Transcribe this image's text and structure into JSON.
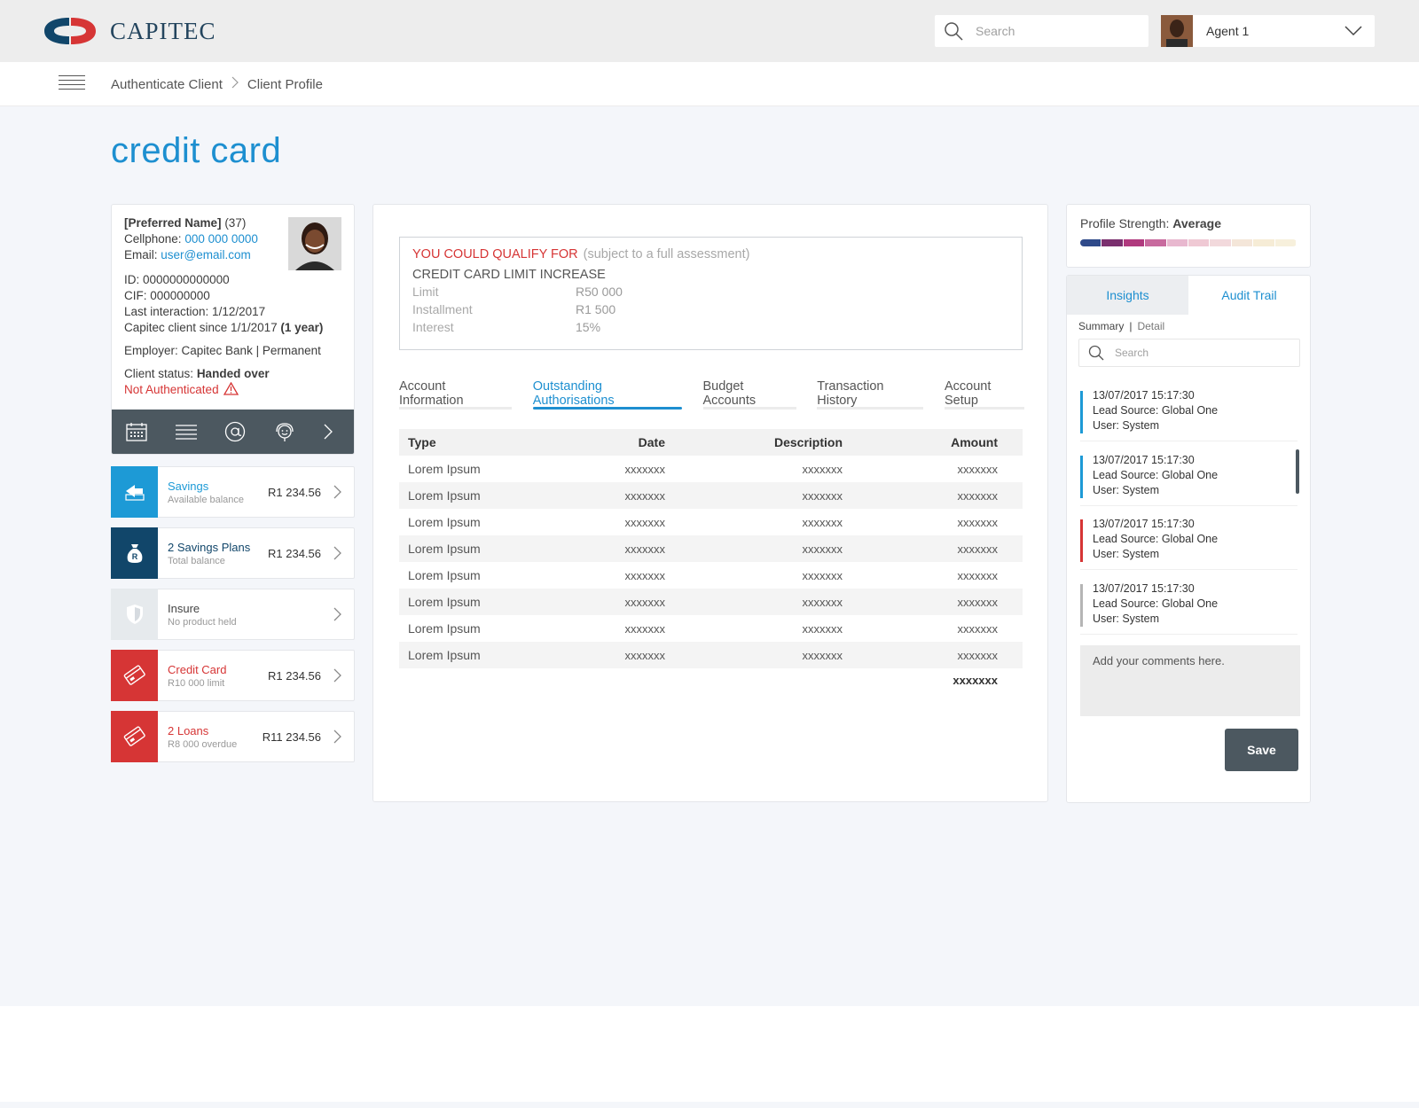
{
  "brand": {
    "name": "CAPITEC"
  },
  "header": {
    "search_placeholder": "Search",
    "agent_name": "Agent 1"
  },
  "breadcrumb": {
    "items": [
      "Authenticate Client",
      "Client Profile"
    ],
    "separator": ">"
  },
  "page": {
    "title": "credit card"
  },
  "client": {
    "preferred_name": "[Preferred Name]",
    "age": "(37)",
    "cellphone_label": "Cellphone:",
    "cellphone": "000 000 0000",
    "email_label": "Email:",
    "email": "user@email.com",
    "id_line": "ID: 0000000000000",
    "cif_line": "CIF: 000000000",
    "last_interaction": "Last interaction: 1/12/2017",
    "client_since": "Capitec client since 1/1/2017",
    "client_years": "(1 year)",
    "employer": "Employer: Capitec Bank | Permanent",
    "status_label": "Client status:",
    "status_value": "Handed over",
    "auth_status": "Not Authenticated"
  },
  "products": [
    {
      "name": "Savings",
      "sub": "Available balance",
      "value": "R1 234.56",
      "color": "#1d9ad6"
    },
    {
      "name": "2 Savings Plans",
      "sub": "Total balance",
      "value": "R1 234.56",
      "color": "#11466a"
    },
    {
      "name": "Insure",
      "sub": "No product held",
      "value": "",
      "color": "#e6eaed"
    },
    {
      "name": "Credit Card",
      "sub": "R10 000 limit",
      "value": "R1 234.56",
      "color": "#d63535"
    },
    {
      "name": "2 Loans",
      "sub": "R8 000 overdue",
      "value": "R11 234.56",
      "color": "#d63535"
    }
  ],
  "qualify": {
    "heading": "YOU COULD QUALIFY FOR",
    "note": "(subject to a full assessment)",
    "title": "CREDIT CARD LIMIT INCREASE",
    "rows": [
      {
        "label": "Limit",
        "value": "R50 000"
      },
      {
        "label": "Installment",
        "value": "R1 500"
      },
      {
        "label": "Interest",
        "value": "15%"
      }
    ]
  },
  "tabs": [
    {
      "label": "Account Information",
      "active": false
    },
    {
      "label": "Outstanding Authorisations",
      "active": true
    },
    {
      "label": "Budget Accounts",
      "active": false
    },
    {
      "label": "Transaction History",
      "active": false
    },
    {
      "label": "Account Setup",
      "active": false
    }
  ],
  "table": {
    "headers": [
      "Type",
      "Date",
      "Description",
      "Amount"
    ],
    "rows": [
      [
        "Lorem Ipsum",
        "xxxxxxx",
        "xxxxxxx",
        "xxxxxxx"
      ],
      [
        "Lorem Ipsum",
        "xxxxxxx",
        "xxxxxxx",
        "xxxxxxx"
      ],
      [
        "Lorem Ipsum",
        "xxxxxxx",
        "xxxxxxx",
        "xxxxxxx"
      ],
      [
        "Lorem Ipsum",
        "xxxxxxx",
        "xxxxxxx",
        "xxxxxxx"
      ],
      [
        "Lorem Ipsum",
        "xxxxxxx",
        "xxxxxxx",
        "xxxxxxx"
      ],
      [
        "Lorem Ipsum",
        "xxxxxxx",
        "xxxxxxx",
        "xxxxxxx"
      ],
      [
        "Lorem Ipsum",
        "xxxxxxx",
        "xxxxxxx",
        "xxxxxxx"
      ],
      [
        "Lorem Ipsum",
        "xxxxxxx",
        "xxxxxxx",
        "xxxxxxx"
      ]
    ],
    "total": "xxxxxxx"
  },
  "profile_strength": {
    "label": "Profile Strength:",
    "value": "Average",
    "level_segments_filled": 4,
    "segment_colors": [
      "#2f4a8a",
      "#7a2f6e",
      "#b03a7e",
      "#c86a9e",
      "#e8b8cf",
      "#efc9d4",
      "#f2d9dc",
      "#f4e6d9",
      "#f6ecd6",
      "#f7f0dc"
    ]
  },
  "side_tabs": {
    "insights": "Insights",
    "audit_trail": "Audit Trail"
  },
  "audit": {
    "summary": "Summary",
    "separator": "|",
    "detail": "Detail",
    "search_placeholder": "Search",
    "entries": [
      {
        "timestamp": "13/07/2017  15:17:30",
        "source": "Lead Source: Global One",
        "user": "User: System",
        "color": "#1d9ad6"
      },
      {
        "timestamp": "13/07/2017  15:17:30",
        "source": "Lead Source: Global One",
        "user": "User: System",
        "color": "#1d9ad6"
      },
      {
        "timestamp": "13/07/2017  15:17:30",
        "source": "Lead Source: Global One",
        "user": "User: System",
        "color": "#d63535"
      },
      {
        "timestamp": "13/07/2017  15:17:30",
        "source": "Lead Source: Global One",
        "user": "User: System",
        "color": "#b5b5b5"
      }
    ],
    "comment_placeholder": "Add your comments here.",
    "save_label": "Save"
  }
}
